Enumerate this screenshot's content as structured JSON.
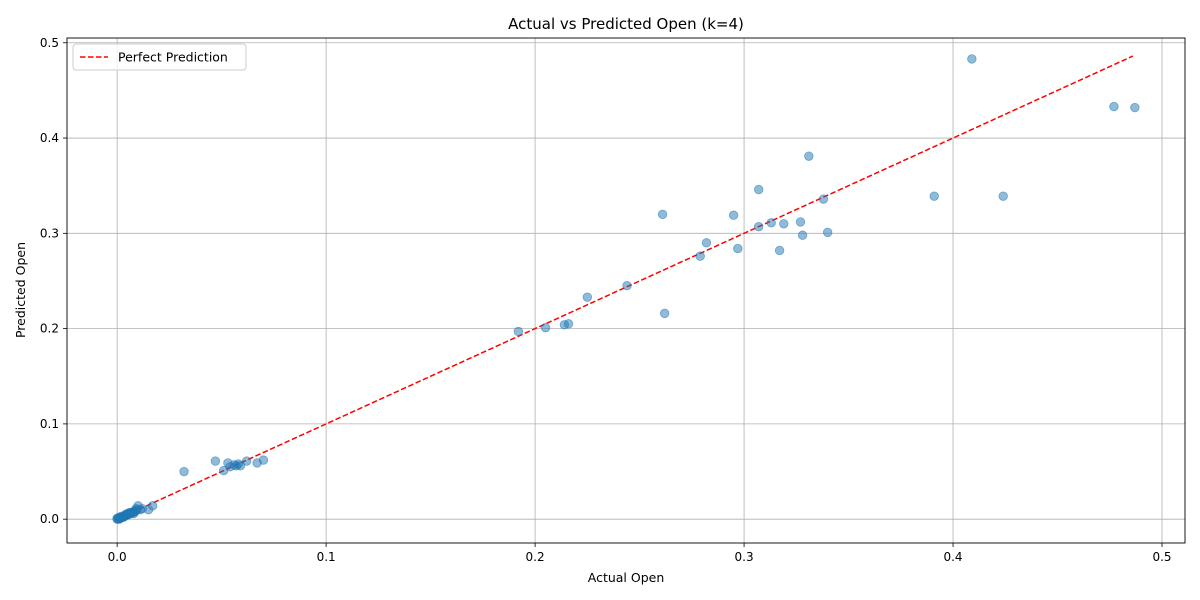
{
  "chart_data": {
    "type": "scatter",
    "title": "Actual vs Predicted Open (k=4)",
    "xlabel": "Actual Open",
    "ylabel": "Predicted Open",
    "xlim": [
      -0.024,
      0.511
    ],
    "ylim": [
      -0.025,
      0.505
    ],
    "xticks": [
      0.0,
      0.1,
      0.2,
      0.3,
      0.4,
      0.5
    ],
    "yticks": [
      0.0,
      0.1,
      0.2,
      0.3,
      0.4,
      0.5
    ],
    "xtick_labels": [
      "0.0",
      "0.1",
      "0.2",
      "0.3",
      "0.4",
      "0.5"
    ],
    "ytick_labels": [
      "0.0",
      "0.1",
      "0.2",
      "0.3",
      "0.4",
      "0.5"
    ],
    "grid": true,
    "legend": {
      "position": "top-left",
      "entries": [
        "Perfect Prediction"
      ]
    },
    "colors": {
      "points": "#1f77b4",
      "line": "#ff0000",
      "grid": "#b0b0b0"
    },
    "reference_line": {
      "name": "Perfect Prediction",
      "x": [
        0.0,
        0.486
      ],
      "y": [
        0.0,
        0.486
      ],
      "style": "dashed"
    },
    "series": [
      {
        "points": [
          [
            0.0,
            0.0
          ],
          [
            0.0005,
            0.0005
          ],
          [
            0.001,
            0.0
          ],
          [
            0.0015,
            0.001
          ],
          [
            0.002,
            0.002
          ],
          [
            0.0025,
            0.002
          ],
          [
            0.003,
            0.003
          ],
          [
            0.0035,
            0.003
          ],
          [
            0.004,
            0.004
          ],
          [
            0.0045,
            0.004
          ],
          [
            0.005,
            0.005
          ],
          [
            0.0055,
            0.005
          ],
          [
            0.006,
            0.006
          ],
          [
            0.0065,
            0.006
          ],
          [
            0.007,
            0.007
          ],
          [
            0.0075,
            0.007
          ],
          [
            0.008,
            0.008
          ],
          [
            0.0085,
            0.008
          ],
          [
            0.009,
            0.009
          ],
          [
            0.0095,
            0.01
          ],
          [
            0.01,
            0.014
          ],
          [
            0.011,
            0.01
          ],
          [
            0.012,
            0.011
          ],
          [
            0.015,
            0.01
          ],
          [
            0.017,
            0.014
          ],
          [
            0.001,
            0.001
          ],
          [
            0.002,
            0.003
          ],
          [
            0.003,
            0.002
          ],
          [
            0.004,
            0.005
          ],
          [
            0.006,
            0.007
          ],
          [
            0.008,
            0.006
          ],
          [
            0.009,
            0.011
          ],
          [
            0.0,
            0.001
          ],
          [
            0.001,
            0.002
          ],
          [
            0.005,
            0.006
          ],
          [
            0.032,
            0.05
          ],
          [
            0.047,
            0.061
          ],
          [
            0.051,
            0.051
          ],
          [
            0.053,
            0.059
          ],
          [
            0.054,
            0.055
          ],
          [
            0.056,
            0.057
          ],
          [
            0.057,
            0.056
          ],
          [
            0.058,
            0.058
          ],
          [
            0.059,
            0.056
          ],
          [
            0.062,
            0.061
          ],
          [
            0.067,
            0.059
          ],
          [
            0.07,
            0.062
          ],
          [
            0.192,
            0.197
          ],
          [
            0.205,
            0.201
          ],
          [
            0.214,
            0.204
          ],
          [
            0.216,
            0.205
          ],
          [
            0.225,
            0.233
          ],
          [
            0.244,
            0.245
          ],
          [
            0.262,
            0.216
          ],
          [
            0.261,
            0.32
          ],
          [
            0.279,
            0.276
          ],
          [
            0.282,
            0.29
          ],
          [
            0.295,
            0.319
          ],
          [
            0.297,
            0.284
          ],
          [
            0.307,
            0.346
          ],
          [
            0.307,
            0.307
          ],
          [
            0.313,
            0.311
          ],
          [
            0.319,
            0.31
          ],
          [
            0.317,
            0.282
          ],
          [
            0.327,
            0.312
          ],
          [
            0.328,
            0.298
          ],
          [
            0.331,
            0.381
          ],
          [
            0.338,
            0.336
          ],
          [
            0.34,
            0.301
          ],
          [
            0.391,
            0.339
          ],
          [
            0.409,
            0.483
          ],
          [
            0.424,
            0.339
          ],
          [
            0.477,
            0.433
          ],
          [
            0.487,
            0.432
          ]
        ]
      }
    ]
  }
}
